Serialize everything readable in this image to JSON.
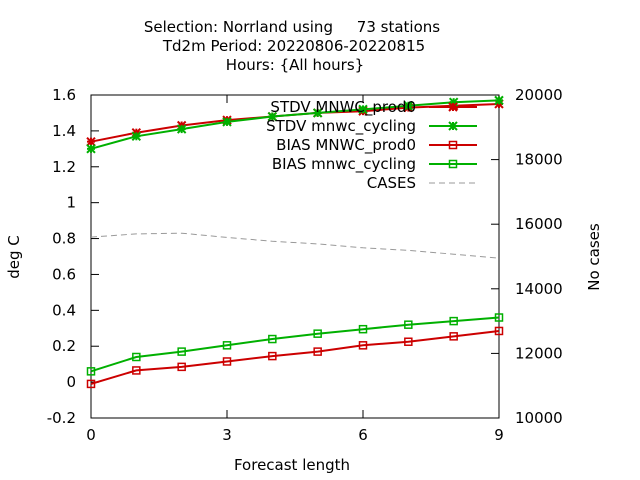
{
  "chart_data": {
    "type": "line",
    "title": {
      "line1": "Selection: Norrland using     73 stations",
      "line2": "Td2m   Period: 20220806-20220815",
      "line3": "Hours: {All hours}"
    },
    "xlabel": "Forecast length",
    "ylabel": "deg C",
    "y2label": "No cases",
    "xlim": [
      0,
      9
    ],
    "ylim": [
      -0.2,
      1.6
    ],
    "y2lim": [
      10000,
      20000
    ],
    "x_ticks": [
      0,
      3,
      6,
      9
    ],
    "y_ticks": [
      -0.2,
      0,
      0.2,
      0.4,
      0.6,
      0.8,
      1,
      1.2,
      1.4,
      1.6
    ],
    "y_tick_labels": [
      "-0.2",
      "0",
      "0.2",
      "0.4",
      "0.6",
      "0.8",
      "1",
      "1.2",
      "1.4",
      "1.6"
    ],
    "y2_ticks": [
      10000,
      12000,
      14000,
      16000,
      18000,
      20000
    ],
    "grid": false,
    "legend_position": "top-right",
    "x": [
      0,
      1,
      2,
      3,
      4,
      5,
      6,
      7,
      8,
      9
    ],
    "series": [
      {
        "name": "STDV MNWC_prod0",
        "color": "#cc0000",
        "marker": "x",
        "axis": "y1",
        "values": [
          1.34,
          1.39,
          1.43,
          1.46,
          1.48,
          1.5,
          1.51,
          1.53,
          1.54,
          1.55
        ]
      },
      {
        "name": "STDV mnwc_cycling",
        "color": "#00b000",
        "marker": "x",
        "axis": "y1",
        "values": [
          1.3,
          1.37,
          1.41,
          1.45,
          1.48,
          1.5,
          1.52,
          1.54,
          1.56,
          1.57
        ]
      },
      {
        "name": "BIAS MNWC_prod0",
        "color": "#cc0000",
        "marker": "square",
        "axis": "y1",
        "values": [
          -0.01,
          0.065,
          0.085,
          0.115,
          0.145,
          0.17,
          0.205,
          0.225,
          0.255,
          0.285
        ]
      },
      {
        "name": "BIAS mnwc_cycling",
        "color": "#00b000",
        "marker": "square",
        "axis": "y1",
        "values": [
          0.06,
          0.14,
          0.17,
          0.205,
          0.24,
          0.27,
          0.295,
          0.32,
          0.34,
          0.36
        ]
      },
      {
        "name": "CASES",
        "color": "#999999",
        "marker": "none",
        "dashed": true,
        "axis": "y2",
        "values": [
          15600,
          15700,
          15720,
          15590,
          15470,
          15390,
          15270,
          15190,
          15070,
          14950
        ]
      }
    ]
  }
}
